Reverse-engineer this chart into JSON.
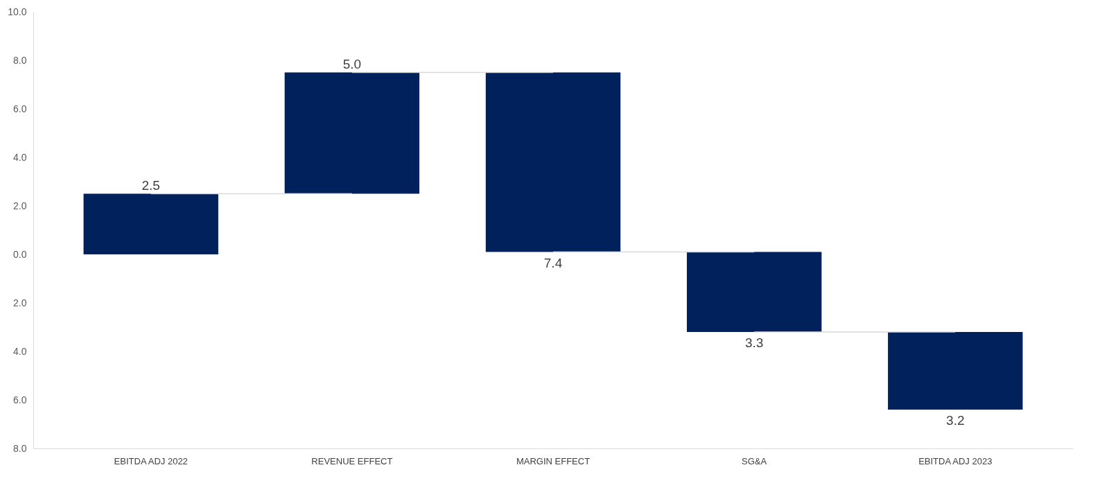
{
  "chart_data": {
    "type": "bar",
    "categories": [
      "EBITDA ADJ 2022",
      "REVENUE EFFECT",
      "MARGIN EFFECT",
      "SG&A",
      "EBITDA ADJ 2023"
    ],
    "values": [
      2.5,
      5.0,
      -7.4,
      -3.3,
      -3.2
    ],
    "base": [
      0,
      2.5,
      7.5,
      0.1,
      -3.2
    ],
    "value_labels": [
      "2.5",
      "5.0",
      "7.4",
      "3.3",
      "3.2"
    ],
    "color": "#00215b",
    "ylim": [
      -8,
      10
    ],
    "yticks": [
      {
        "value": -8,
        "label": "8.0"
      },
      {
        "value": -6,
        "label": "6.0"
      },
      {
        "value": -4,
        "label": "4.0"
      },
      {
        "value": -2,
        "label": "2.0"
      },
      {
        "value": 0,
        "label": "0.0"
      },
      {
        "value": 2,
        "label": "2.0"
      },
      {
        "value": 4,
        "label": "4.0"
      },
      {
        "value": 6,
        "label": "6.0"
      },
      {
        "value": 8,
        "label": "8.0"
      },
      {
        "value": 10,
        "label": "10.0"
      }
    ],
    "grid": false
  }
}
